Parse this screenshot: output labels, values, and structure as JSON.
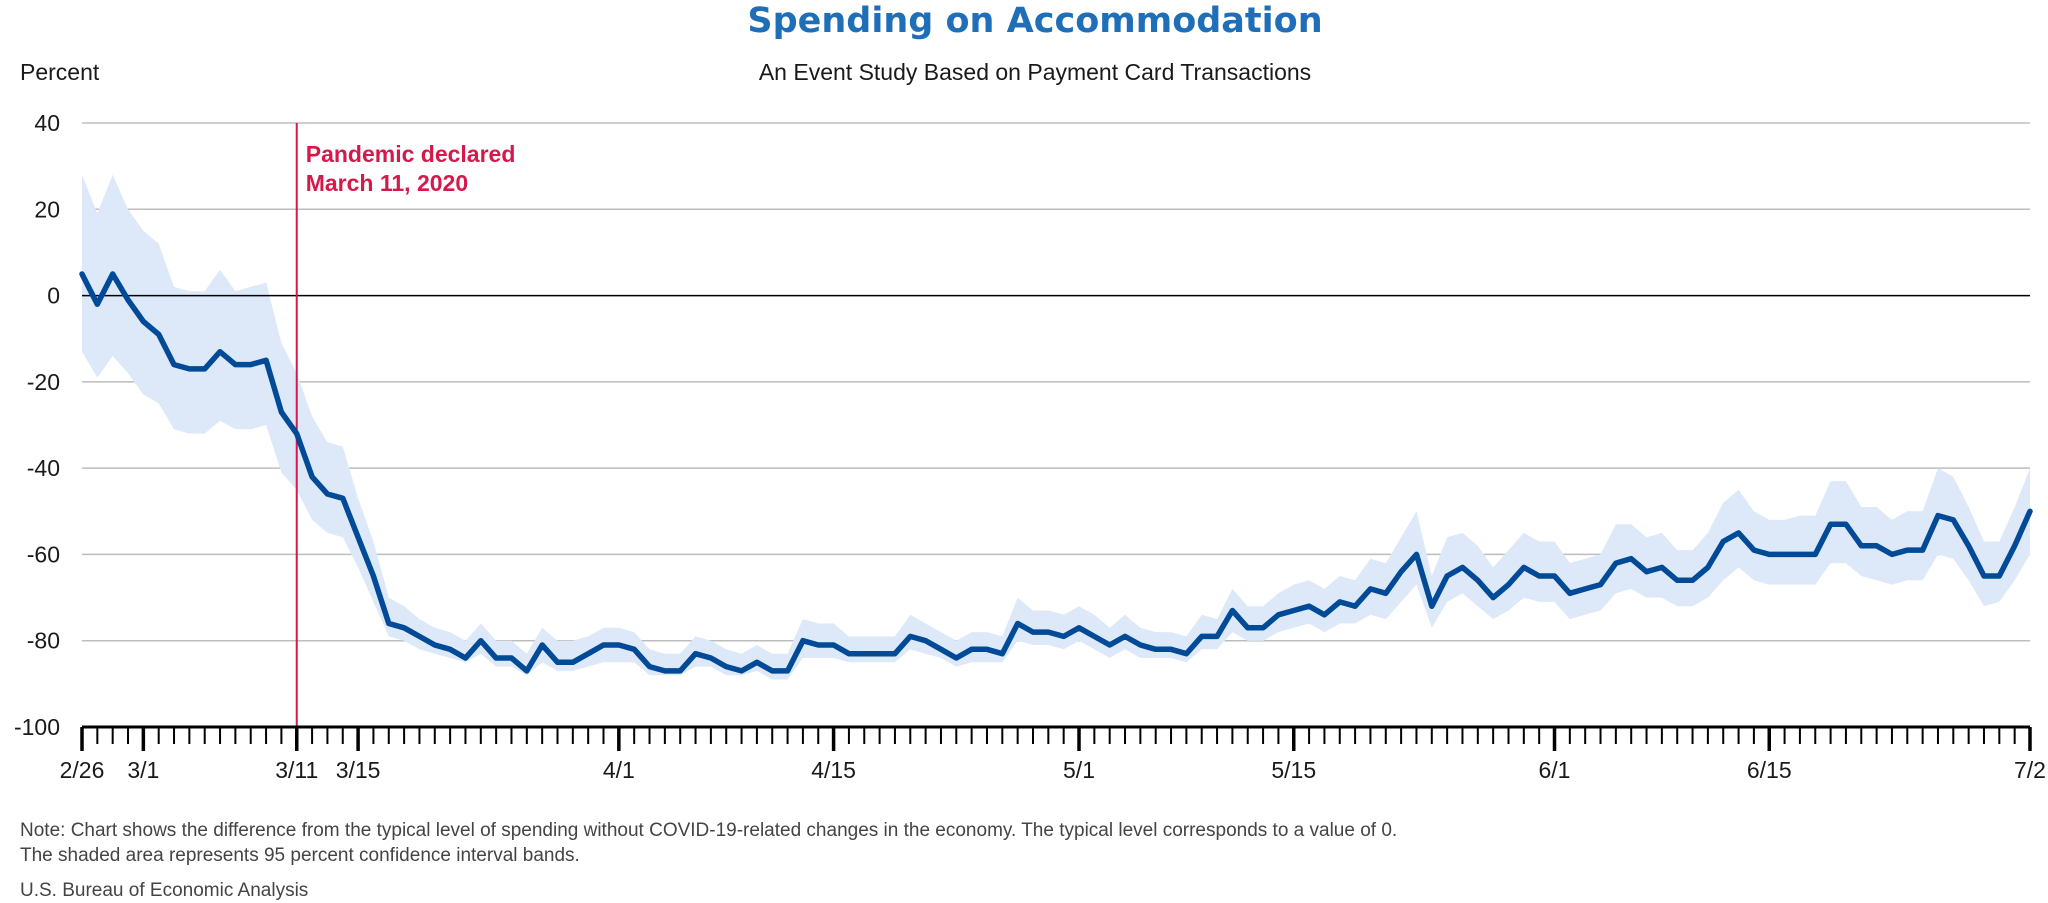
{
  "colors": {
    "title": "#1f6fb8",
    "line": "#004a97",
    "band": "#dde9f8",
    "event": "#d6194b",
    "grid": "#bdbdbd",
    "zero": "#000000"
  },
  "chart_data": {
    "type": "line",
    "title": "Spending on Accommodation",
    "subtitle": "An Event Study Based on Payment Card Transactions",
    "ylabel": "Percent",
    "ylim": [
      -100,
      40
    ],
    "yticks": [
      40,
      20,
      0,
      -20,
      -40,
      -60,
      -80,
      -100
    ],
    "ytick_labels": [
      "40",
      "20",
      "0",
      "-20",
      "-40",
      "-60",
      "-80",
      "-100"
    ],
    "grid": true,
    "x_start": "2020-02-26",
    "x_end": "2020-07-02",
    "xtick_labels": [
      {
        "label": "2/26",
        "date": "2020-02-26"
      },
      {
        "label": "3/1",
        "date": "2020-03-01"
      },
      {
        "label": "3/11",
        "date": "2020-03-11"
      },
      {
        "label": "3/15",
        "date": "2020-03-15"
      },
      {
        "label": "4/1",
        "date": "2020-04-01"
      },
      {
        "label": "4/15",
        "date": "2020-04-15"
      },
      {
        "label": "5/1",
        "date": "2020-05-01"
      },
      {
        "label": "5/15",
        "date": "2020-05-15"
      },
      {
        "label": "6/1",
        "date": "2020-06-01"
      },
      {
        "label": "6/15",
        "date": "2020-06-15"
      },
      {
        "label": "7/2",
        "date": "2020-07-02"
      }
    ],
    "event": {
      "date": "2020-03-11",
      "label_line1": "Pandemic declared",
      "label_line2": "March 11, 2020"
    },
    "series": [
      {
        "values": [
          5,
          -2,
          5,
          -1,
          -6,
          -9,
          -16,
          -17,
          -17,
          -13,
          -16,
          -16,
          -15,
          -27,
          -32,
          -42,
          -46,
          -47,
          -56,
          -65,
          -76,
          -77,
          -79,
          -81,
          -82,
          -84,
          -80,
          -84,
          -84,
          -87,
          -81,
          -85,
          -85,
          -83,
          -81,
          -81,
          -82,
          -86,
          -87,
          -87,
          -83,
          -84,
          -86,
          -87,
          -85,
          -87,
          -87,
          -80,
          -81,
          -81,
          -83,
          -83,
          -83,
          -83,
          -79,
          -80,
          -82,
          -84,
          -82,
          -82,
          -83,
          -76,
          -78,
          -78,
          -79,
          -77,
          -79,
          -81,
          -79,
          -81,
          -82,
          -82,
          -83,
          -79,
          -79,
          -73,
          -77,
          -77,
          -74,
          -73,
          -72,
          -74,
          -71,
          -72,
          -68,
          -69,
          -64,
          -60,
          -72,
          -65,
          -63,
          -66,
          -70,
          -67,
          -63,
          -65,
          -65,
          -69,
          -68,
          -67,
          -62,
          -61,
          -64,
          -63,
          -66,
          -66,
          -63,
          -57,
          -55,
          -59,
          -60,
          -60,
          -60,
          -60,
          -53,
          -53,
          -58,
          -58,
          -60,
          -59,
          -59,
          -51,
          -52,
          -58,
          -65,
          -65,
          -58,
          -50
        ],
        "lower": [
          -13,
          -19,
          -14,
          -18,
          -23,
          -25,
          -31,
          -32,
          -32,
          -29,
          -31,
          -31,
          -30,
          -41,
          -45,
          -52,
          -55,
          -56,
          -63,
          -71,
          -79,
          -80,
          -82,
          -83,
          -84,
          -85,
          -83,
          -86,
          -86,
          -88,
          -85,
          -87,
          -87,
          -86,
          -85,
          -85,
          -85,
          -88,
          -88,
          -88,
          -86,
          -86,
          -88,
          -88,
          -87,
          -89,
          -89,
          -84,
          -84,
          -84,
          -85,
          -85,
          -85,
          -85,
          -82,
          -83,
          -84,
          -86,
          -85,
          -85,
          -85,
          -80,
          -81,
          -81,
          -82,
          -80,
          -82,
          -84,
          -82,
          -84,
          -84,
          -84,
          -85,
          -82,
          -82,
          -78,
          -80,
          -80,
          -78,
          -77,
          -76,
          -78,
          -76,
          -76,
          -74,
          -75,
          -71,
          -67,
          -77,
          -71,
          -69,
          -72,
          -75,
          -73,
          -70,
          -71,
          -71,
          -75,
          -74,
          -73,
          -69,
          -68,
          -70,
          -70,
          -72,
          -72,
          -70,
          -66,
          -63,
          -66,
          -67,
          -67,
          -67,
          -67,
          -62,
          -62,
          -65,
          -66,
          -67,
          -66,
          -66,
          -60,
          -61,
          -66,
          -72,
          -71,
          -66,
          -60
        ],
        "upper": [
          28,
          19,
          28,
          20,
          15,
          12,
          2,
          1,
          1,
          6,
          1,
          2,
          3,
          -11,
          -18,
          -28,
          -34,
          -35,
          -47,
          -57,
          -70,
          -72,
          -75,
          -77,
          -78,
          -80,
          -76,
          -80,
          -80,
          -83,
          -77,
          -80,
          -80,
          -79,
          -77,
          -77,
          -78,
          -82,
          -83,
          -83,
          -79,
          -80,
          -82,
          -83,
          -81,
          -83,
          -83,
          -75,
          -76,
          -76,
          -79,
          -79,
          -79,
          -79,
          -74,
          -76,
          -78,
          -80,
          -78,
          -78,
          -79,
          -70,
          -73,
          -73,
          -74,
          -72,
          -74,
          -77,
          -74,
          -77,
          -78,
          -78,
          -79,
          -74,
          -75,
          -68,
          -72,
          -72,
          -69,
          -67,
          -66,
          -68,
          -65,
          -66,
          -61,
          -62,
          -56,
          -50,
          -65,
          -56,
          -55,
          -58,
          -63,
          -59,
          -55,
          -57,
          -57,
          -62,
          -61,
          -60,
          -53,
          -53,
          -56,
          -55,
          -59,
          -59,
          -55,
          -48,
          -45,
          -50,
          -52,
          -52,
          -51,
          -51,
          -43,
          -43,
          -49,
          -49,
          -52,
          -50,
          -50,
          -40,
          -42,
          -49,
          -57,
          -57,
          -49,
          -40
        ]
      }
    ]
  },
  "footer": {
    "note_line1": "Note: Chart shows the difference from the typical level of spending without COVID-19-related changes in the economy. The typical level corresponds to a value of 0.",
    "note_line2": "The shaded area represents 95 percent confidence interval bands.",
    "source": "U.S. Bureau of Economic Analysis"
  }
}
